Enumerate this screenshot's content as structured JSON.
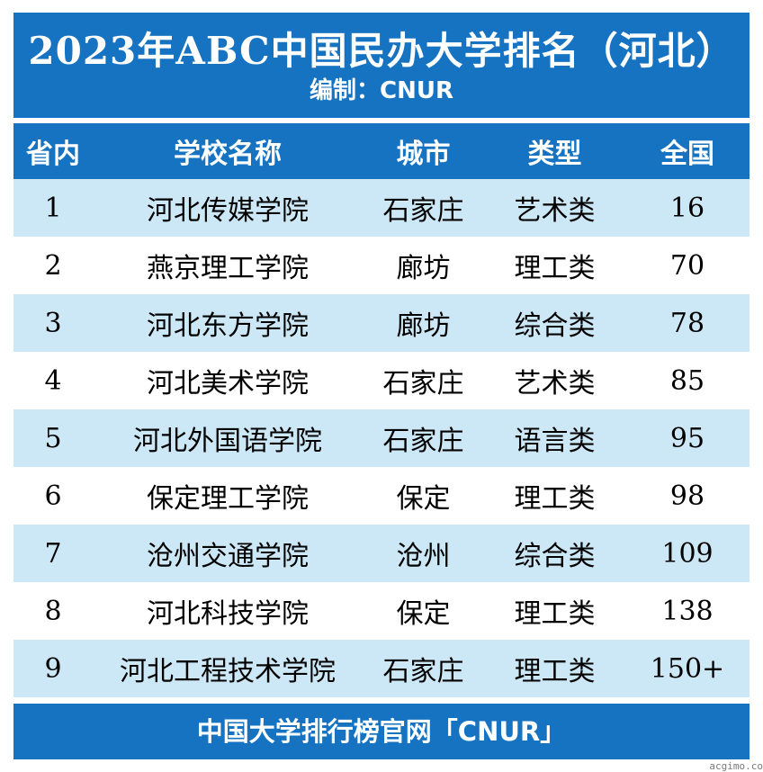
{
  "header": {
    "title": "2023年ABC中国民办大学排名（河北）",
    "subtitle": "编制：CNUR"
  },
  "columns": {
    "rank_province": "省内",
    "school_name": "学校名称",
    "city": "城市",
    "type": "类型",
    "rank_national": "全国"
  },
  "rows": [
    {
      "rank": "1",
      "name": "河北传媒学院",
      "city": "石家庄",
      "type": "艺术类",
      "national": "16"
    },
    {
      "rank": "2",
      "name": "燕京理工学院",
      "city": "廊坊",
      "type": "理工类",
      "national": "70"
    },
    {
      "rank": "3",
      "name": "河北东方学院",
      "city": "廊坊",
      "type": "综合类",
      "national": "78"
    },
    {
      "rank": "4",
      "name": "河北美术学院",
      "city": "石家庄",
      "type": "艺术类",
      "national": "85"
    },
    {
      "rank": "5",
      "name": "河北外国语学院",
      "city": "石家庄",
      "type": "语言类",
      "national": "95"
    },
    {
      "rank": "6",
      "name": "保定理工学院",
      "city": "保定",
      "type": "理工类",
      "national": "98"
    },
    {
      "rank": "7",
      "name": "沧州交通学院",
      "city": "沧州",
      "type": "综合类",
      "national": "109"
    },
    {
      "rank": "8",
      "name": "河北科技学院",
      "city": "保定",
      "type": "理工类",
      "national": "138"
    },
    {
      "rank": "9",
      "name": "河北工程技术学院",
      "city": "石家庄",
      "type": "理工类",
      "national": "150+"
    }
  ],
  "footer": {
    "text": "中国大学排行榜官网「CNUR」"
  },
  "watermark": "acgimo.co",
  "colors": {
    "header_blue": "#1673c2",
    "row_alt": "#cce8f6",
    "row_plain": "#ffffff"
  }
}
